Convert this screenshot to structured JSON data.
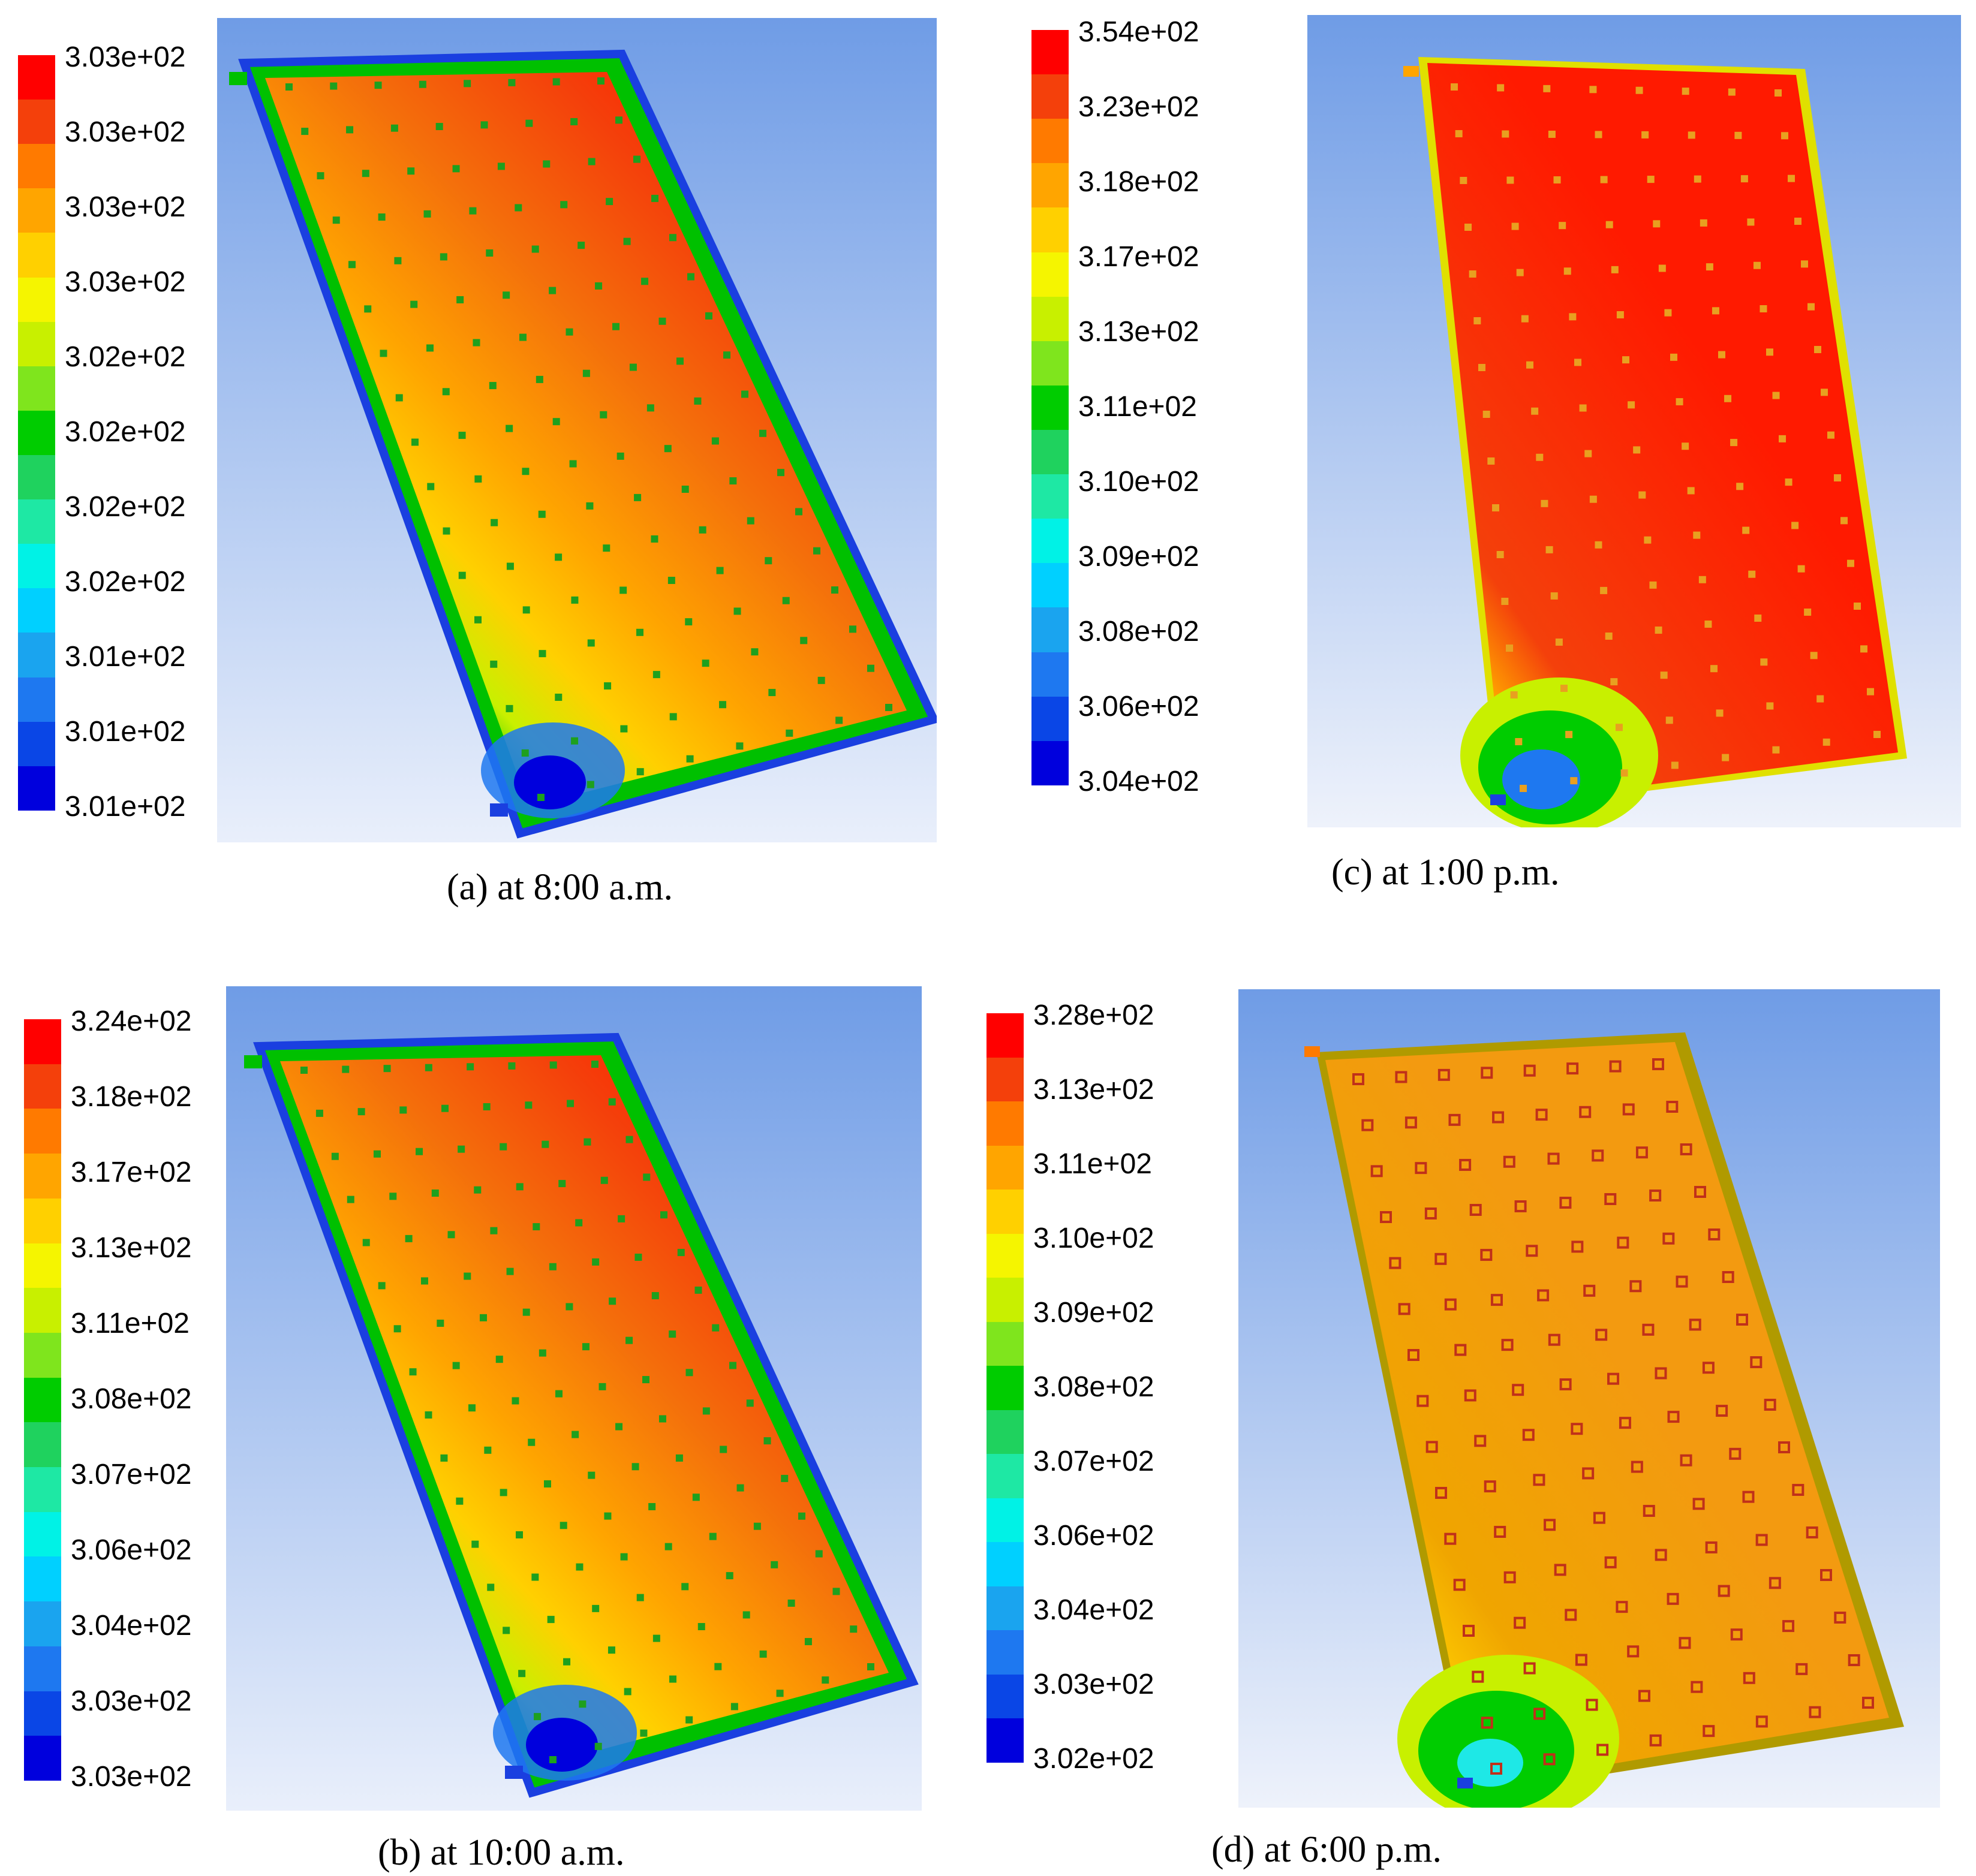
{
  "panels": [
    {
      "id": "a",
      "caption": "(a) at 8:00 a.m.",
      "legend_labels": [
        "3.03e+02",
        "3.03e+02",
        "3.03e+02",
        "3.03e+02",
        "3.02e+02",
        "3.02e+02",
        "3.02e+02",
        "3.02e+02",
        "3.01e+02",
        "3.01e+02",
        "3.01e+02"
      ],
      "plate_style": "green-edge",
      "hot_fraction": 0.78
    },
    {
      "id": "b",
      "caption": "(b) at 10:00 a.m.",
      "legend_labels": [
        "3.24e+02",
        "3.18e+02",
        "3.17e+02",
        "3.13e+02",
        "3.11e+02",
        "3.08e+02",
        "3.07e+02",
        "3.06e+02",
        "3.04e+02",
        "3.03e+02",
        "3.03e+02"
      ],
      "plate_style": "green-edge",
      "hot_fraction": 0.78
    },
    {
      "id": "c",
      "caption": "(c) at 1:00 p.m.",
      "legend_labels": [
        "3.54e+02",
        "3.23e+02",
        "3.18e+02",
        "3.17e+02",
        "3.13e+02",
        "3.11e+02",
        "3.10e+02",
        "3.09e+02",
        "3.08e+02",
        "3.06e+02",
        "3.04e+02"
      ],
      "plate_style": "red",
      "hot_fraction": 0.9
    },
    {
      "id": "d",
      "caption": "(d) at 6:00 p.m.",
      "legend_labels": [
        "3.28e+02",
        "3.13e+02",
        "3.11e+02",
        "3.10e+02",
        "3.09e+02",
        "3.08e+02",
        "3.07e+02",
        "3.06e+02",
        "3.04e+02",
        "3.03e+02",
        "3.02e+02"
      ],
      "plate_style": "orange",
      "hot_fraction": 0.85
    }
  ],
  "colormap": [
    "#ff0000",
    "#f4400b",
    "#ff7a00",
    "#ffa500",
    "#ffd000",
    "#f5f500",
    "#c8f000",
    "#7fe51d",
    "#00cc00",
    "#1fd25e",
    "#1ee8a4",
    "#00f2e6",
    "#00d0ff",
    "#1aa4ef",
    "#1e78f0",
    "#0a46e6",
    "#0000dd"
  ]
}
